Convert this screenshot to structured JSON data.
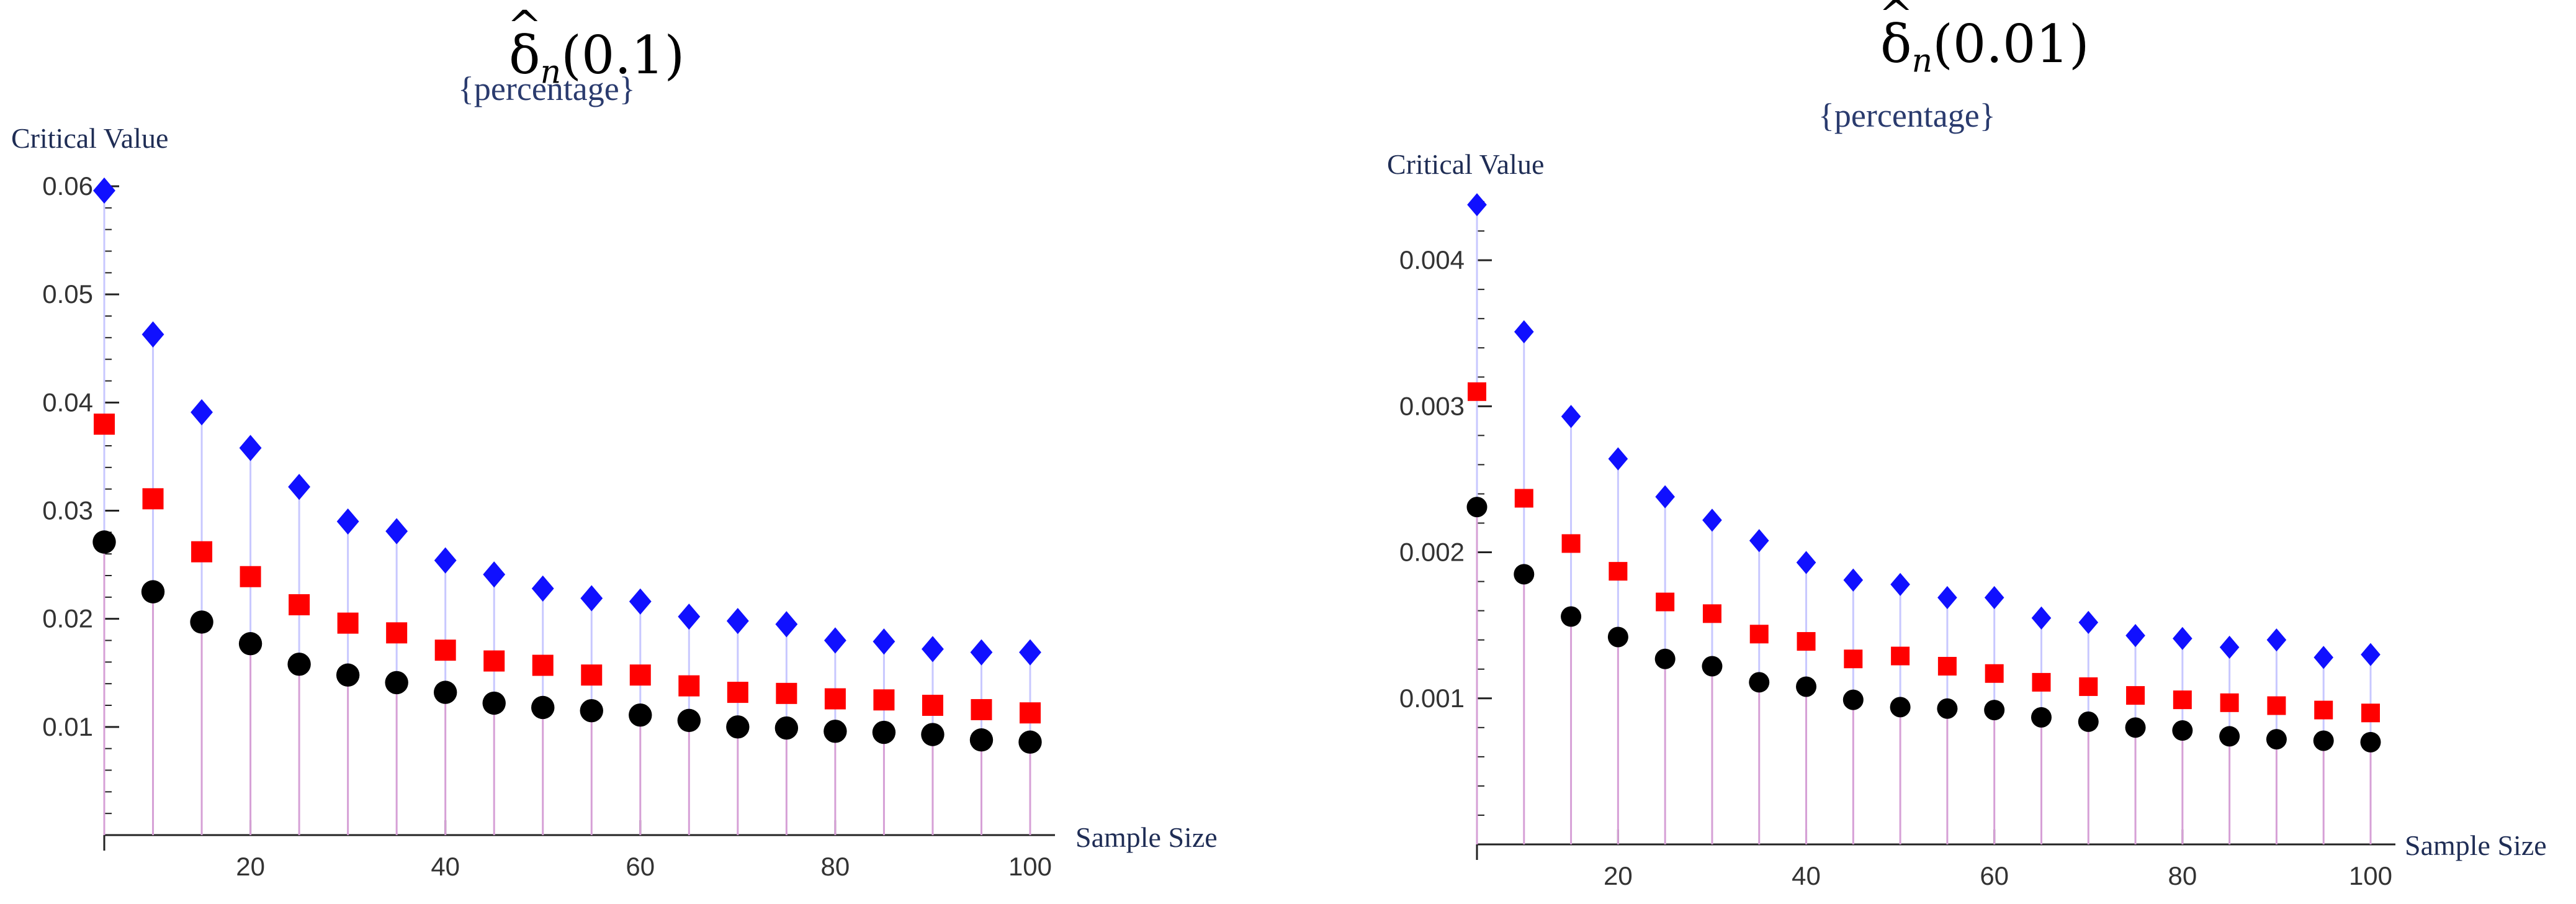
{
  "charts": [
    {
      "title_symbol": "δ",
      "title_sub": "n",
      "title_arg": "(0.1)",
      "subtitle": "{percentage}",
      "ylabel": "Critical Value",
      "xlabel": "Sample Size"
    },
    {
      "title_symbol": "δ",
      "title_sub": "n",
      "title_arg": "(0.01)",
      "subtitle": "{percentage}",
      "ylabel": "Critical Value",
      "xlabel": "Sample Size"
    }
  ],
  "colors": {
    "series_top": "#1010ff",
    "series_mid": "#ff0000",
    "series_bot": "#000000",
    "stem_blue": "#c8c8ff",
    "stem_pink": "#d6a0d6"
  },
  "chart_data": [
    {
      "type": "scatter",
      "title": "δn(0.1)",
      "subtitle": "{percentage}",
      "xlabel": "Sample Size",
      "ylabel": "Critical Value",
      "x": [
        5,
        10,
        15,
        20,
        25,
        30,
        35,
        40,
        45,
        50,
        55,
        60,
        65,
        70,
        75,
        80,
        85,
        90,
        95,
        100
      ],
      "xlim": [
        5,
        100
      ],
      "ylim": [
        0,
        0.06
      ],
      "xticks": [
        20,
        40,
        60,
        80,
        100
      ],
      "yticks": [
        0.01,
        0.02,
        0.03,
        0.04,
        0.05,
        0.06
      ],
      "ytick_labels": [
        "0.01",
        "0.02",
        "0.03",
        "0.04",
        "0.05",
        "0.06"
      ],
      "series": [
        {
          "name": "top",
          "marker": "diamond",
          "values": [
            0.0596,
            0.0463,
            0.0391,
            0.0358,
            0.0322,
            0.029,
            0.0281,
            0.0254,
            0.0241,
            0.0228,
            0.0219,
            0.0216,
            0.0202,
            0.0198,
            0.0195,
            0.018,
            0.0179,
            0.0172,
            0.0169,
            0.0169
          ]
        },
        {
          "name": "middle",
          "marker": "square",
          "values": [
            0.038,
            0.0311,
            0.0262,
            0.0239,
            0.0213,
            0.0196,
            0.0187,
            0.0171,
            0.0161,
            0.0157,
            0.0148,
            0.0148,
            0.0138,
            0.0132,
            0.0131,
            0.0126,
            0.0125,
            0.012,
            0.0116,
            0.0113
          ]
        },
        {
          "name": "bottom",
          "marker": "circle",
          "values": [
            0.0271,
            0.0225,
            0.0197,
            0.0177,
            0.0158,
            0.0148,
            0.0141,
            0.0132,
            0.0122,
            0.0118,
            0.0115,
            0.0111,
            0.0106,
            0.01,
            0.0099,
            0.0096,
            0.0095,
            0.0093,
            0.0088,
            0.0086
          ]
        }
      ]
    },
    {
      "type": "scatter",
      "title": "δn(0.01)",
      "subtitle": "{percentage}",
      "xlabel": "Sample Size",
      "ylabel": "Critical Value",
      "x": [
        5,
        10,
        15,
        20,
        25,
        30,
        35,
        40,
        45,
        50,
        55,
        60,
        65,
        70,
        75,
        80,
        85,
        90,
        95,
        100
      ],
      "xlim": [
        5,
        100
      ],
      "ylim": [
        0,
        0.0044
      ],
      "xticks": [
        20,
        40,
        60,
        80,
        100
      ],
      "yticks": [
        0.001,
        0.002,
        0.003,
        0.004
      ],
      "ytick_labels": [
        "0.001",
        "0.002",
        "0.003",
        "0.004"
      ],
      "series": [
        {
          "name": "top",
          "marker": "diamond",
          "values": [
            0.00438,
            0.00351,
            0.00293,
            0.00264,
            0.00238,
            0.00222,
            0.00208,
            0.00193,
            0.00181,
            0.00178,
            0.00169,
            0.00169,
            0.00155,
            0.00152,
            0.00143,
            0.00141,
            0.00135,
            0.0014,
            0.00128,
            0.0013
          ]
        },
        {
          "name": "middle",
          "marker": "square",
          "values": [
            0.0031,
            0.00237,
            0.00206,
            0.00187,
            0.00166,
            0.00158,
            0.00144,
            0.00139,
            0.00127,
            0.00129,
            0.00122,
            0.00117,
            0.00111,
            0.00108,
            0.00102,
            0.00099,
            0.00097,
            0.00095,
            0.00092,
            0.0009
          ]
        },
        {
          "name": "bottom",
          "marker": "circle",
          "values": [
            0.00231,
            0.00185,
            0.00156,
            0.00142,
            0.00127,
            0.00122,
            0.00111,
            0.00108,
            0.00099,
            0.00094,
            0.00093,
            0.00092,
            0.00087,
            0.00084,
            0.0008,
            0.00078,
            0.00074,
            0.00072,
            0.00071,
            0.0007
          ]
        }
      ]
    }
  ]
}
